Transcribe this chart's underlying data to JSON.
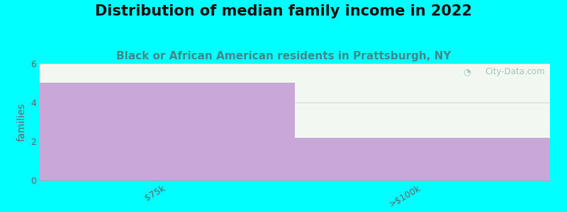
{
  "title": "Distribution of median family income in 2022",
  "subtitle": "Black or African American residents in Prattsburgh, NY",
  "categories": [
    "$75k",
    ">$100k"
  ],
  "values": [
    5,
    2.2
  ],
  "bar_color": "#c8a8d8",
  "background_color": "#00ffff",
  "plot_bg_color": "#f0f8f0",
  "ylabel": "families",
  "ylim": [
    0,
    6
  ],
  "yticks": [
    0,
    2,
    4,
    6
  ],
  "title_fontsize": 15,
  "title_fontweight": "bold",
  "subtitle_fontsize": 11,
  "subtitle_color": "#448888",
  "ylabel_fontsize": 10,
  "watermark": "City-Data.com",
  "watermark_color": "#a0b8b8",
  "tick_label_color": "#666666",
  "tick_label_fontsize": 9
}
